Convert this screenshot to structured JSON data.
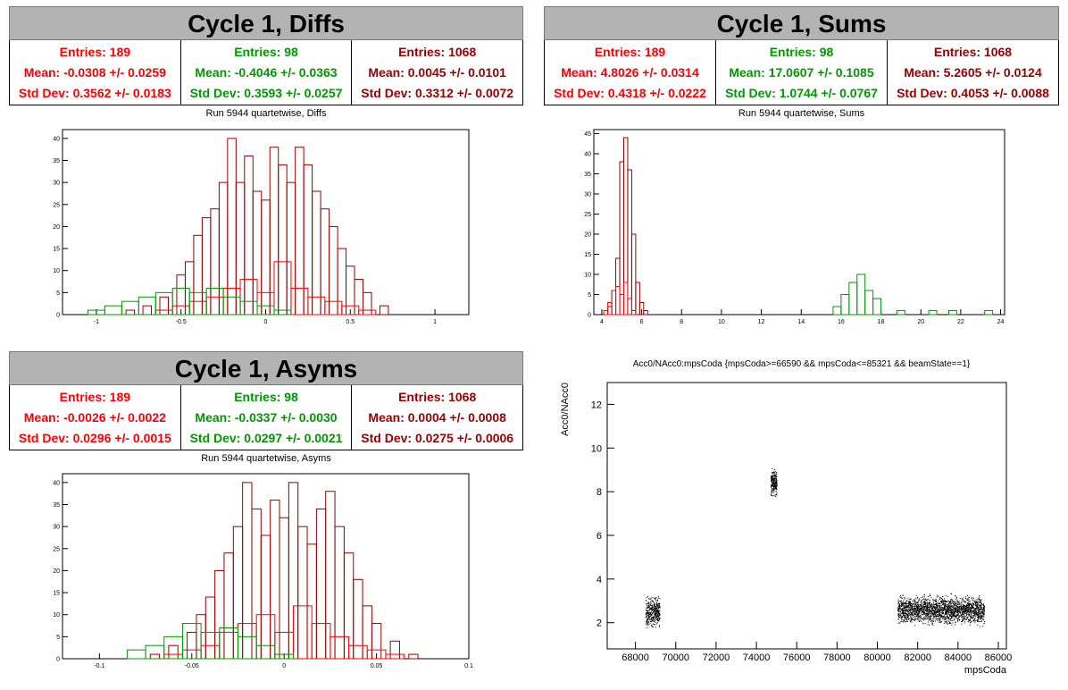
{
  "panels": [
    {
      "title": "Cycle 1, Diffs",
      "subtitle": "Run 5944 quartetwise, Diffs",
      "stats": [
        {
          "entries": "Entries: 189",
          "mean": "Mean: -0.0308 +/- 0.0259",
          "std": "Std Dev: 0.3562 +/- 0.0183",
          "color": "#ff0000"
        },
        {
          "entries": "Entries: 98",
          "mean": "Mean: -0.4046 +/- 0.0363",
          "std": "Std Dev: 0.3593 +/- 0.0257",
          "color": "#009900"
        },
        {
          "entries": "Entries: 1068",
          "mean": "Mean: 0.0045 +/- 0.0101",
          "std": "Std Dev: 0.3312 +/- 0.0072",
          "color": "#990000"
        }
      ]
    },
    {
      "title": "Cycle 1, Sums",
      "subtitle": "Run 5944 quartetwise, Sums",
      "stats": [
        {
          "entries": "Entries: 189",
          "mean": "Mean: 4.8026 +/- 0.0314",
          "std": "Std Dev: 0.4318 +/- 0.0222",
          "color": "#ff0000"
        },
        {
          "entries": "Entries: 98",
          "mean": "Mean: 17.0607 +/- 0.1085",
          "std": "Std Dev: 1.0744 +/- 0.0767",
          "color": "#009900"
        },
        {
          "entries": "Entries: 1068",
          "mean": "Mean: 5.2605 +/- 0.0124",
          "std": "Std Dev: 0.4053 +/- 0.0088",
          "color": "#990000"
        }
      ]
    },
    {
      "title": "Cycle 1, Asyms",
      "subtitle": "Run 5944 quartetwise, Asyms",
      "stats": [
        {
          "entries": "Entries: 189",
          "mean": "Mean: -0.0026 +/- 0.0022",
          "std": "Std Dev: 0.0296 +/- 0.0015",
          "color": "#ff0000"
        },
        {
          "entries": "Entries: 98",
          "mean": "Mean: -0.0337 +/- 0.0030",
          "std": "Std Dev: 0.0297 +/- 0.0021",
          "color": "#009900"
        },
        {
          "entries": "Entries: 1068",
          "mean": "Mean: 0.0004 +/- 0.0008",
          "std": "Std Dev: 0.0275 +/- 0.0006",
          "color": "#990000"
        }
      ]
    }
  ],
  "scatter_panel": {
    "subtitle": "Acc0/NAcc0:mpsCoda {mpsCoda>=66590 && mpsCoda<=85321 && beamState==1}"
  },
  "chart_data": [
    {
      "type": "bar",
      "name": "diffs",
      "xlim": [
        -1.2,
        1.2
      ],
      "ylim": [
        0,
        42
      ],
      "x_ticks": [
        "-1",
        "-0.5",
        "0",
        "0.5",
        "1"
      ],
      "y_ticks": [
        "0",
        "5",
        "10",
        "15",
        "20",
        "25",
        "30",
        "35",
        "40"
      ],
      "series": [
        {
          "color": "#990000",
          "centers": [
            -0.8,
            -0.7,
            -0.6,
            -0.5,
            -0.45,
            -0.4,
            -0.35,
            -0.3,
            -0.25,
            -0.2,
            -0.15,
            -0.1,
            -0.05,
            0,
            0.05,
            0.1,
            0.15,
            0.2,
            0.25,
            0.3,
            0.35,
            0.4,
            0.45,
            0.5,
            0.55,
            0.6,
            0.7
          ],
          "values": [
            1,
            2,
            4,
            9,
            12,
            18,
            22,
            24,
            30,
            40,
            30,
            36,
            28,
            26,
            38,
            34,
            30,
            38,
            34,
            28,
            24,
            20,
            15,
            11,
            8,
            5,
            2
          ]
        },
        {
          "color": "#ff0000",
          "centers": [
            -0.6,
            -0.5,
            -0.4,
            -0.3,
            -0.2,
            -0.1,
            0,
            0.1,
            0.2,
            0.3,
            0.4,
            0.5,
            0.6
          ],
          "values": [
            1,
            2,
            3,
            4,
            6,
            8,
            5,
            12,
            6,
            4,
            3,
            2,
            1
          ]
        },
        {
          "color": "#009900",
          "centers": [
            -1.0,
            -0.9,
            -0.8,
            -0.7,
            -0.6,
            -0.5,
            -0.4,
            -0.3,
            -0.2,
            -0.1,
            0,
            0.1
          ],
          "values": [
            1,
            2,
            3,
            4,
            5,
            6,
            5,
            6,
            4,
            3,
            2,
            1
          ]
        }
      ]
    },
    {
      "type": "bar",
      "name": "sums",
      "xlim": [
        3.6,
        24.2
      ],
      "ylim": [
        0,
        46
      ],
      "x_ticks": [
        "4",
        "6",
        "8",
        "10",
        "12",
        "14",
        "16",
        "18",
        "20",
        "22",
        "24"
      ],
      "y_ticks": [
        "0",
        "5",
        "10",
        "15",
        "20",
        "25",
        "30",
        "35",
        "40",
        "45"
      ],
      "series": [
        {
          "color": "#990000",
          "centers": [
            4.4,
            4.6,
            4.8,
            5.0,
            5.2,
            5.4,
            5.6,
            5.8,
            6.0,
            6.2
          ],
          "values": [
            2,
            6,
            14,
            38,
            44,
            36,
            20,
            8,
            3,
            1
          ]
        },
        {
          "color": "#ff0000",
          "centers": [
            4.2,
            4.4,
            4.6,
            4.8,
            5.0,
            5.2,
            5.4,
            5.6
          ],
          "values": [
            1,
            3,
            6,
            7,
            5,
            8,
            4,
            1
          ]
        },
        {
          "color": "#009900",
          "centers": [
            15.8,
            16.2,
            16.6,
            17.0,
            17.4,
            17.8,
            19.0,
            20.6,
            21.6,
            23.4
          ],
          "values": [
            2,
            5,
            8,
            10,
            6,
            4,
            1,
            1,
            1,
            1
          ]
        }
      ]
    },
    {
      "type": "bar",
      "name": "asyms",
      "xlim": [
        -0.12,
        0.1
      ],
      "ylim": [
        0,
        42
      ],
      "x_ticks": [
        "-0.1",
        "-0.05",
        "0",
        "0.05",
        "0.1"
      ],
      "y_ticks": [
        "0",
        "5",
        "10",
        "15",
        "20",
        "25",
        "30",
        "35",
        "40"
      ],
      "series": [
        {
          "color": "#990000",
          "centers": [
            -0.07,
            -0.06,
            -0.05,
            -0.045,
            -0.04,
            -0.035,
            -0.03,
            -0.025,
            -0.02,
            -0.015,
            -0.01,
            -0.005,
            0,
            0.005,
            0.01,
            0.015,
            0.02,
            0.025,
            0.03,
            0.035,
            0.04,
            0.045,
            0.05,
            0.06,
            0.07
          ],
          "values": [
            1,
            3,
            6,
            10,
            14,
            20,
            24,
            30,
            40,
            34,
            28,
            36,
            32,
            40,
            30,
            26,
            34,
            38,
            30,
            24,
            18,
            12,
            8,
            4,
            1
          ]
        },
        {
          "color": "#ff0000",
          "centers": [
            -0.06,
            -0.05,
            -0.04,
            -0.03,
            -0.02,
            -0.01,
            0,
            0.01,
            0.02,
            0.03,
            0.04,
            0.05,
            0.06
          ],
          "values": [
            1,
            2,
            3,
            6,
            8,
            10,
            6,
            12,
            8,
            5,
            3,
            2,
            1
          ]
        },
        {
          "color": "#009900",
          "centers": [
            -0.08,
            -0.07,
            -0.06,
            -0.05,
            -0.04,
            -0.03,
            -0.02,
            -0.01,
            0
          ],
          "values": [
            2,
            3,
            5,
            8,
            6,
            7,
            5,
            3,
            1
          ]
        }
      ]
    },
    {
      "type": "scatter",
      "name": "acc0",
      "xlabel": "mpsCoda",
      "ylabel": "Acc0/NAcc0",
      "xlim": [
        66600,
        86400
      ],
      "ylim": [
        0.8,
        13.0
      ],
      "x_ticks": [
        "68000",
        "70000",
        "72000",
        "74000",
        "76000",
        "78000",
        "80000",
        "82000",
        "84000",
        "86000"
      ],
      "y_ticks": [
        "2",
        "4",
        "6",
        "8",
        "10",
        "12"
      ],
      "clusters": [
        {
          "x_range": [
            68500,
            69200
          ],
          "y_center": 2.5,
          "y_spread": 0.55,
          "count": 400
        },
        {
          "x_range": [
            74700,
            75000
          ],
          "y_center": 8.4,
          "y_spread": 0.55,
          "count": 220
        },
        {
          "x_range": [
            81000,
            85300
          ],
          "y_center": 2.6,
          "y_spread": 0.55,
          "count": 2200
        }
      ]
    }
  ]
}
